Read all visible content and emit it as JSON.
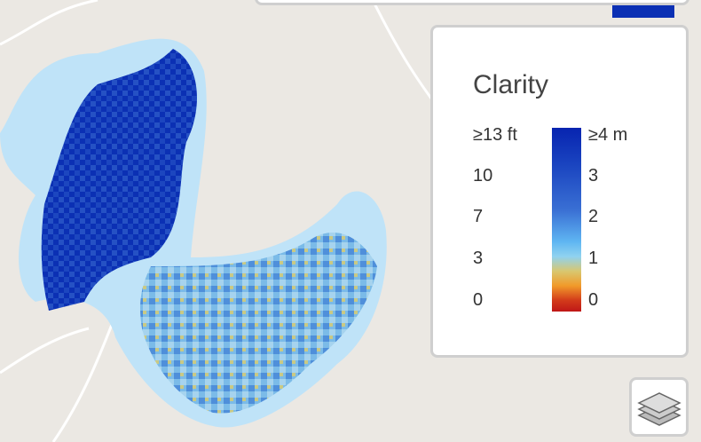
{
  "legend": {
    "title": "Clarity",
    "feet_labels": [
      "≥13 ft",
      "10",
      "7",
      "3",
      "0"
    ],
    "meter_labels": [
      "≥4 m",
      "3",
      "2",
      "1",
      "0"
    ]
  }
}
